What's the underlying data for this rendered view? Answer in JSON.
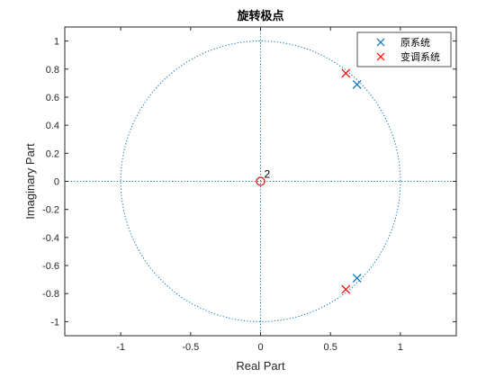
{
  "chart_data": {
    "type": "scatter",
    "title": "旋转极点",
    "xlabel": "Real Part",
    "ylabel": "Imaginary Part",
    "xlim": [
      -1.4,
      1.4
    ],
    "ylim": [
      -1.1,
      1.1
    ],
    "xticks": [
      -1,
      -0.5,
      0,
      0.5,
      1
    ],
    "xtick_labels": [
      "-1",
      "-0.5",
      "0",
      "0.5",
      "1"
    ],
    "yticks": [
      1,
      0.8,
      0.6,
      0.4,
      0.2,
      0,
      -0.2,
      -0.4,
      -0.6,
      -0.8,
      -1
    ],
    "ytick_labels": [
      "1",
      "0.8",
      "0.6",
      "0.4",
      "0.2",
      "0",
      "-0.2",
      "-0.4",
      "-0.6",
      "-0.8",
      "-1"
    ],
    "grid": false,
    "legend_position": "top-right",
    "unit_circle": true,
    "series": [
      {
        "name": "原系统",
        "marker": "x",
        "color": "#0072BD",
        "points": [
          [
            0.69,
            0.69
          ],
          [
            0.69,
            -0.69
          ]
        ]
      },
      {
        "name": "变调系统",
        "marker": "x",
        "color": "#D95319",
        "points": [
          [
            0.61,
            0.77
          ],
          [
            0.61,
            -0.77
          ]
        ]
      }
    ],
    "zeros": {
      "marker": "o",
      "color": "#D95319",
      "points": [
        [
          0,
          0
        ]
      ],
      "multiplicity_label": "2"
    }
  },
  "colors": {
    "axis": "#262626",
    "reference_line": "#0072BD",
    "blue": "#0072BD",
    "red": "#FF0000"
  }
}
